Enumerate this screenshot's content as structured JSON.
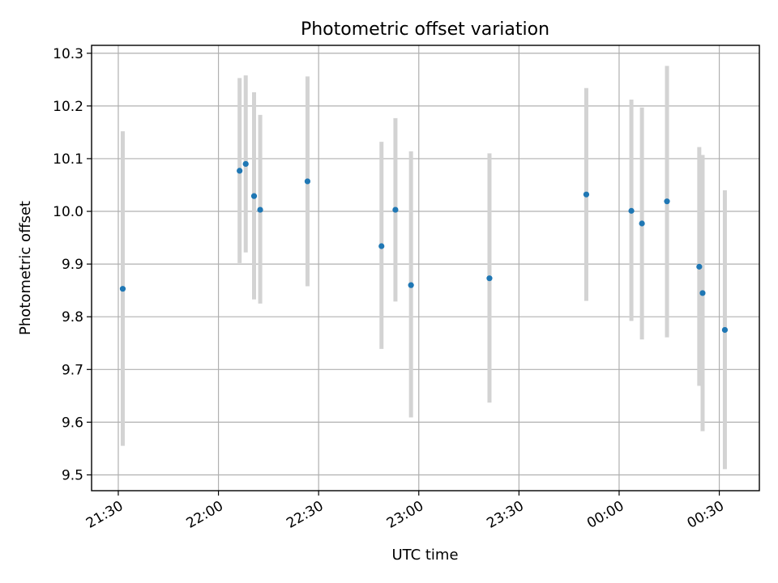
{
  "chart_data": {
    "type": "scatter",
    "title": "Photometric offset variation",
    "xlabel": "UTC time",
    "ylabel": "Photometric offset",
    "x_axis": {
      "kind": "time",
      "range": [
        "21:22",
        "00:42"
      ],
      "ticks": [
        "21:30",
        "22:00",
        "22:30",
        "23:00",
        "23:30",
        "00:00",
        "00:30"
      ]
    },
    "y_axis": {
      "range": [
        9.47,
        10.315
      ],
      "ticks": [
        "9.5",
        "9.6",
        "9.7",
        "9.8",
        "9.9",
        "10.0",
        "10.1",
        "10.2",
        "10.3"
      ]
    },
    "grid": true,
    "colors": {
      "points": "#1f77b4",
      "error_bars": "#d3d3d3"
    },
    "points": [
      {
        "t": "21:31:20",
        "y": 9.853,
        "low": 9.555,
        "high": 10.152
      },
      {
        "t": "22:06:20",
        "y": 10.077,
        "low": 9.902,
        "high": 10.253
      },
      {
        "t": "22:08:10",
        "y": 10.09,
        "low": 9.922,
        "high": 10.258
      },
      {
        "t": "22:10:40",
        "y": 10.029,
        "low": 9.833,
        "high": 10.226
      },
      {
        "t": "22:12:30",
        "y": 10.003,
        "low": 9.825,
        "high": 10.183
      },
      {
        "t": "22:26:40",
        "y": 10.057,
        "low": 9.858,
        "high": 10.256
      },
      {
        "t": "22:48:50",
        "y": 9.934,
        "low": 9.739,
        "high": 10.132
      },
      {
        "t": "22:53:00",
        "y": 10.003,
        "low": 9.829,
        "high": 10.177
      },
      {
        "t": "22:57:40",
        "y": 9.86,
        "low": 9.609,
        "high": 10.114
      },
      {
        "t": "23:21:10",
        "y": 9.873,
        "low": 9.637,
        "high": 10.11
      },
      {
        "t": "23:50:10",
        "y": 10.032,
        "low": 9.83,
        "high": 10.234
      },
      {
        "t": "00:03:40",
        "y": 10.001,
        "low": 9.792,
        "high": 10.212
      },
      {
        "t": "00:06:50",
        "y": 9.977,
        "low": 9.757,
        "high": 10.197
      },
      {
        "t": "00:14:20",
        "y": 10.019,
        "low": 9.761,
        "high": 10.276
      },
      {
        "t": "00:24:00",
        "y": 9.895,
        "low": 9.669,
        "high": 10.122
      },
      {
        "t": "00:25:00",
        "y": 9.845,
        "low": 9.583,
        "high": 10.107
      },
      {
        "t": "00:31:40",
        "y": 9.775,
        "low": 9.511,
        "high": 10.04
      }
    ]
  }
}
